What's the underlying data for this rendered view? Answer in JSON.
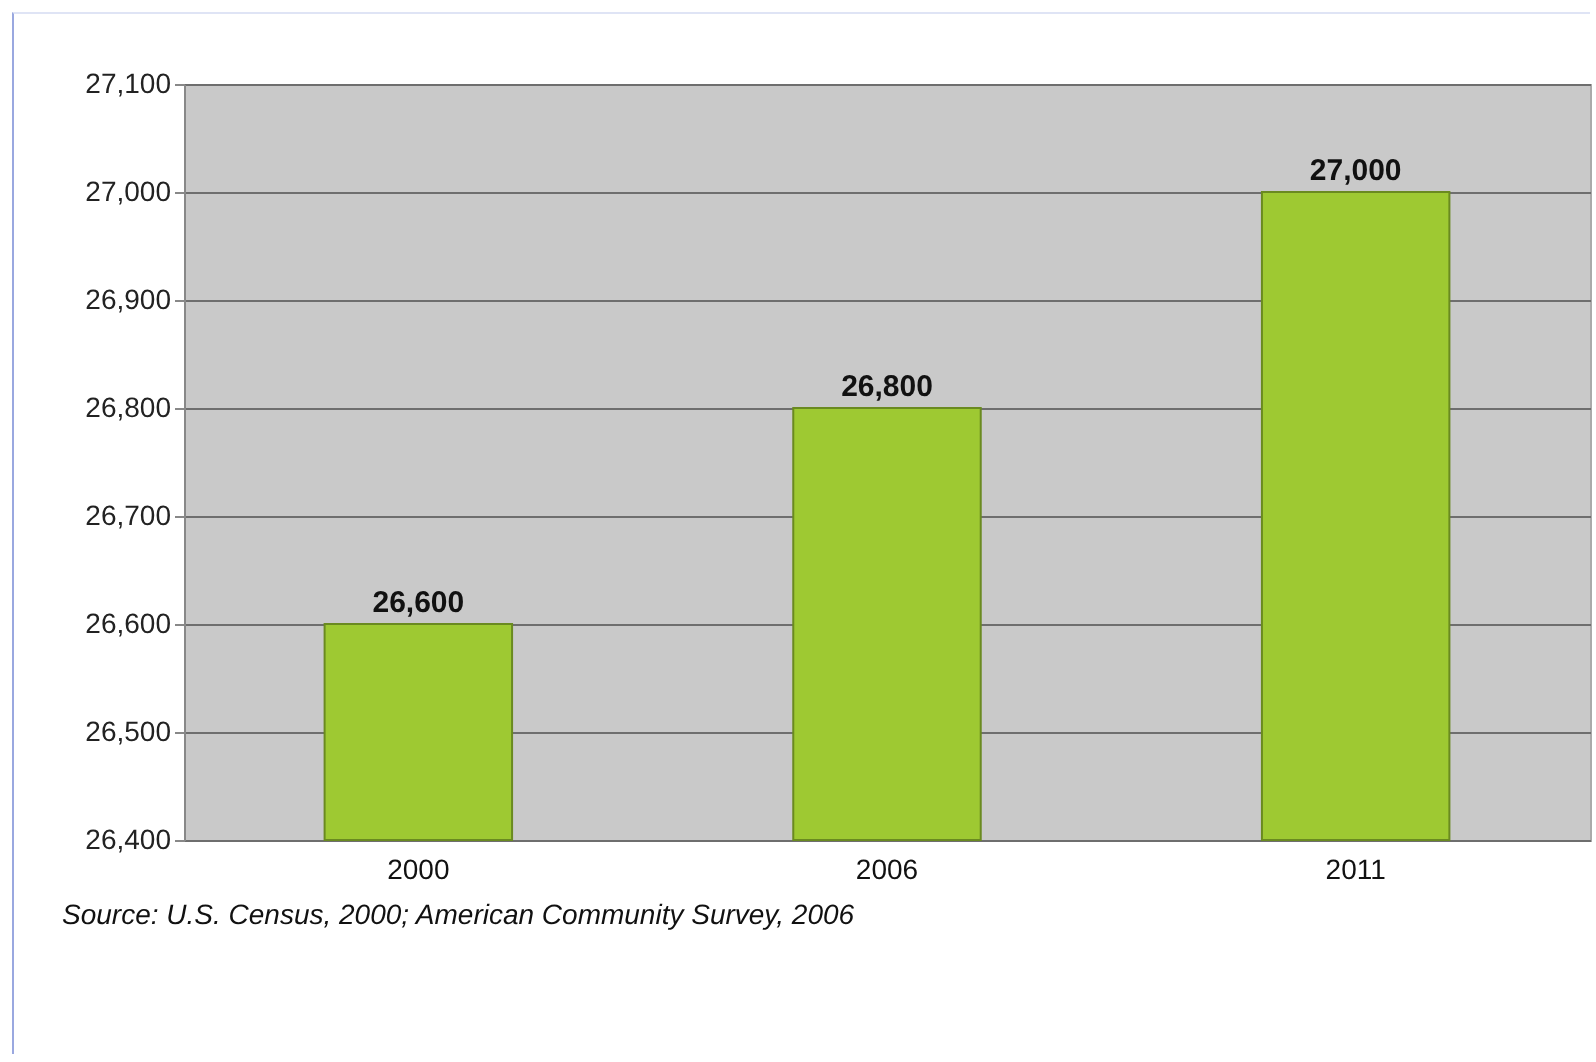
{
  "chart_data": {
    "type": "bar",
    "categories": [
      "2000",
      "2006",
      "2011"
    ],
    "values": [
      26600,
      26800,
      27000
    ],
    "color": "#9ec932",
    "ylim": [
      26400,
      27100
    ],
    "yticks": [
      {
        "value": 26400,
        "label": "26,400"
      },
      {
        "value": 26500,
        "label": "26,500"
      },
      {
        "value": 26600,
        "label": "26,600"
      },
      {
        "value": 26700,
        "label": "26,700"
      },
      {
        "value": 26800,
        "label": "26,800"
      },
      {
        "value": 26900,
        "label": "26,900"
      },
      {
        "value": 27000,
        "label": "27,000"
      },
      {
        "value": 27100,
        "label": "27,100"
      }
    ],
    "grid": "y",
    "value_labels": [
      "26,600",
      "26,800",
      "27,000"
    ],
    "annotations": [
      "Source: U.S. Census, 2000; American Community Survey, 2006"
    ]
  }
}
